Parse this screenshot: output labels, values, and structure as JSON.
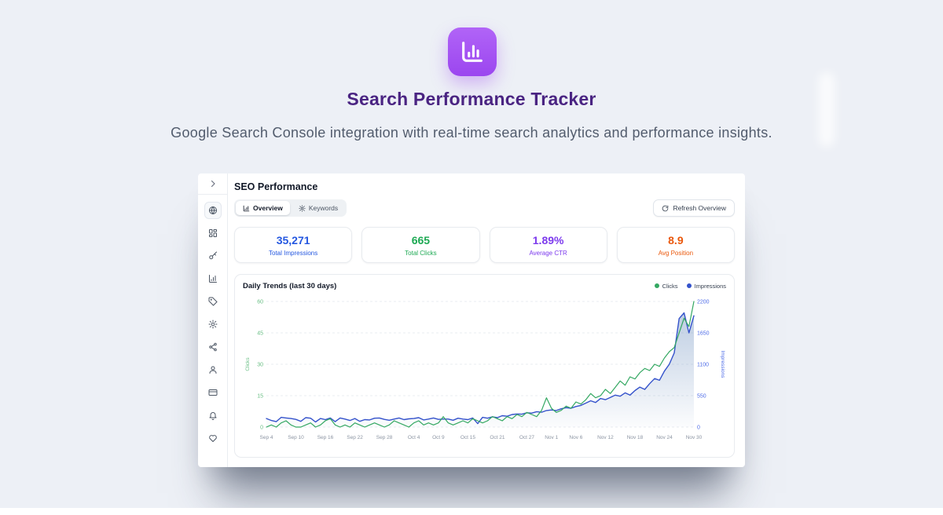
{
  "hero": {
    "app_icon": "bar-chart-icon",
    "accent_color": "#a251f2",
    "title": "Search Performance Tracker",
    "title_color": "#4a2482",
    "subtitle": "Google Search Console integration with real-time search analytics and performance insights."
  },
  "dashboard": {
    "title": "SEO Performance",
    "sidebar": {
      "toggle_icon": "chevron-right-icon",
      "items": [
        "globe-icon",
        "dashboard-grid-icon",
        "key-icon",
        "bar-chart-icon",
        "tag-icon",
        "settings-gear-icon",
        "share-icon",
        "user-icon",
        "billing-card-icon",
        "bell-icon",
        "heart-icon"
      ],
      "active_item": "globe-icon"
    },
    "tabs": [
      {
        "label": "Overview",
        "icon": "bar-chart-icon",
        "active": true
      },
      {
        "label": "Keywords",
        "icon": "settings-gear-icon",
        "active": false
      }
    ],
    "refresh_button": {
      "label": "Refresh Overview",
      "icon": "refresh-icon"
    },
    "stats": [
      {
        "value": "35,271",
        "label": "Total Impressions",
        "color": "#2457e0"
      },
      {
        "value": "665",
        "label": "Total Clicks",
        "color": "#1da953"
      },
      {
        "value": "1.89%",
        "label": "Average CTR",
        "color": "#7c3aed"
      },
      {
        "value": "8.9",
        "label": "Avg Position",
        "color": "#ea580c"
      }
    ]
  },
  "chart_data": {
    "type": "line",
    "title": "Daily Trends (last 30 days)",
    "legend_position": "top-right",
    "grid": true,
    "legend": [
      {
        "name": "Clicks",
        "color": "#34a862"
      },
      {
        "name": "Impressions",
        "color": "#3452cb"
      }
    ],
    "x_tick_labels": [
      "Sep 4",
      "Sep 10",
      "Sep 16",
      "Sep 22",
      "Sep 28",
      "Oct 4",
      "Oct 9",
      "Oct 15",
      "Oct 21",
      "Oct 27",
      "Nov 1",
      "Nov 6",
      "Nov 12",
      "Nov 18",
      "Nov 24",
      "Nov 30"
    ],
    "x_tick_indices": [
      0,
      6,
      12,
      18,
      24,
      30,
      35,
      41,
      47,
      53,
      58,
      63,
      69,
      75,
      81,
      87
    ],
    "left_axis": {
      "label": "Clicks",
      "ticks": [
        0,
        15,
        30,
        45,
        60
      ],
      "range": [
        0,
        60
      ],
      "color": "#6abf85"
    },
    "right_axis": {
      "label": "Impressions",
      "ticks": [
        0,
        550,
        1100,
        1650,
        2200
      ],
      "range": [
        0,
        2200
      ],
      "color": "#4f6de8"
    },
    "series": [
      {
        "name": "Clicks",
        "axis": "left",
        "color": "#34a862",
        "area": false,
        "values": [
          0,
          1,
          0,
          2,
          3,
          1,
          0,
          0,
          1,
          2,
          0,
          1,
          3,
          4,
          1,
          0,
          1,
          0,
          2,
          1,
          0,
          1,
          2,
          1,
          0,
          1,
          3,
          2,
          1,
          0,
          2,
          3,
          1,
          2,
          1,
          2,
          5,
          2,
          1,
          2,
          3,
          2,
          4,
          3,
          2,
          3,
          5,
          4,
          3,
          5,
          4,
          6,
          5,
          7,
          6,
          5,
          8,
          14,
          9,
          7,
          8,
          10,
          9,
          12,
          11,
          13,
          16,
          14,
          15,
          18,
          16,
          19,
          22,
          20,
          24,
          23,
          26,
          28,
          27,
          30,
          29,
          33,
          36,
          38,
          45,
          52,
          48,
          60
        ]
      },
      {
        "name": "Impressions",
        "axis": "right",
        "color": "#3452cb",
        "area": true,
        "values": [
          150,
          115,
          95,
          170,
          160,
          150,
          135,
          100,
          165,
          155,
          90,
          150,
          130,
          160,
          95,
          160,
          140,
          115,
          150,
          100,
          130,
          125,
          155,
          160,
          135,
          120,
          140,
          160,
          130,
          145,
          150,
          165,
          125,
          140,
          160,
          135,
          140,
          140,
          120,
          155,
          140,
          130,
          160,
          60,
          170,
          155,
          180,
          165,
          200,
          190,
          220,
          230,
          225,
          250,
          245,
          270,
          260,
          290,
          300,
          290,
          320,
          340,
          330,
          360,
          380,
          420,
          460,
          430,
          500,
          480,
          520,
          560,
          540,
          600,
          560,
          640,
          700,
          660,
          760,
          850,
          820,
          980,
          1100,
          1300,
          1900,
          2000,
          1650,
          1950
        ]
      }
    ]
  }
}
